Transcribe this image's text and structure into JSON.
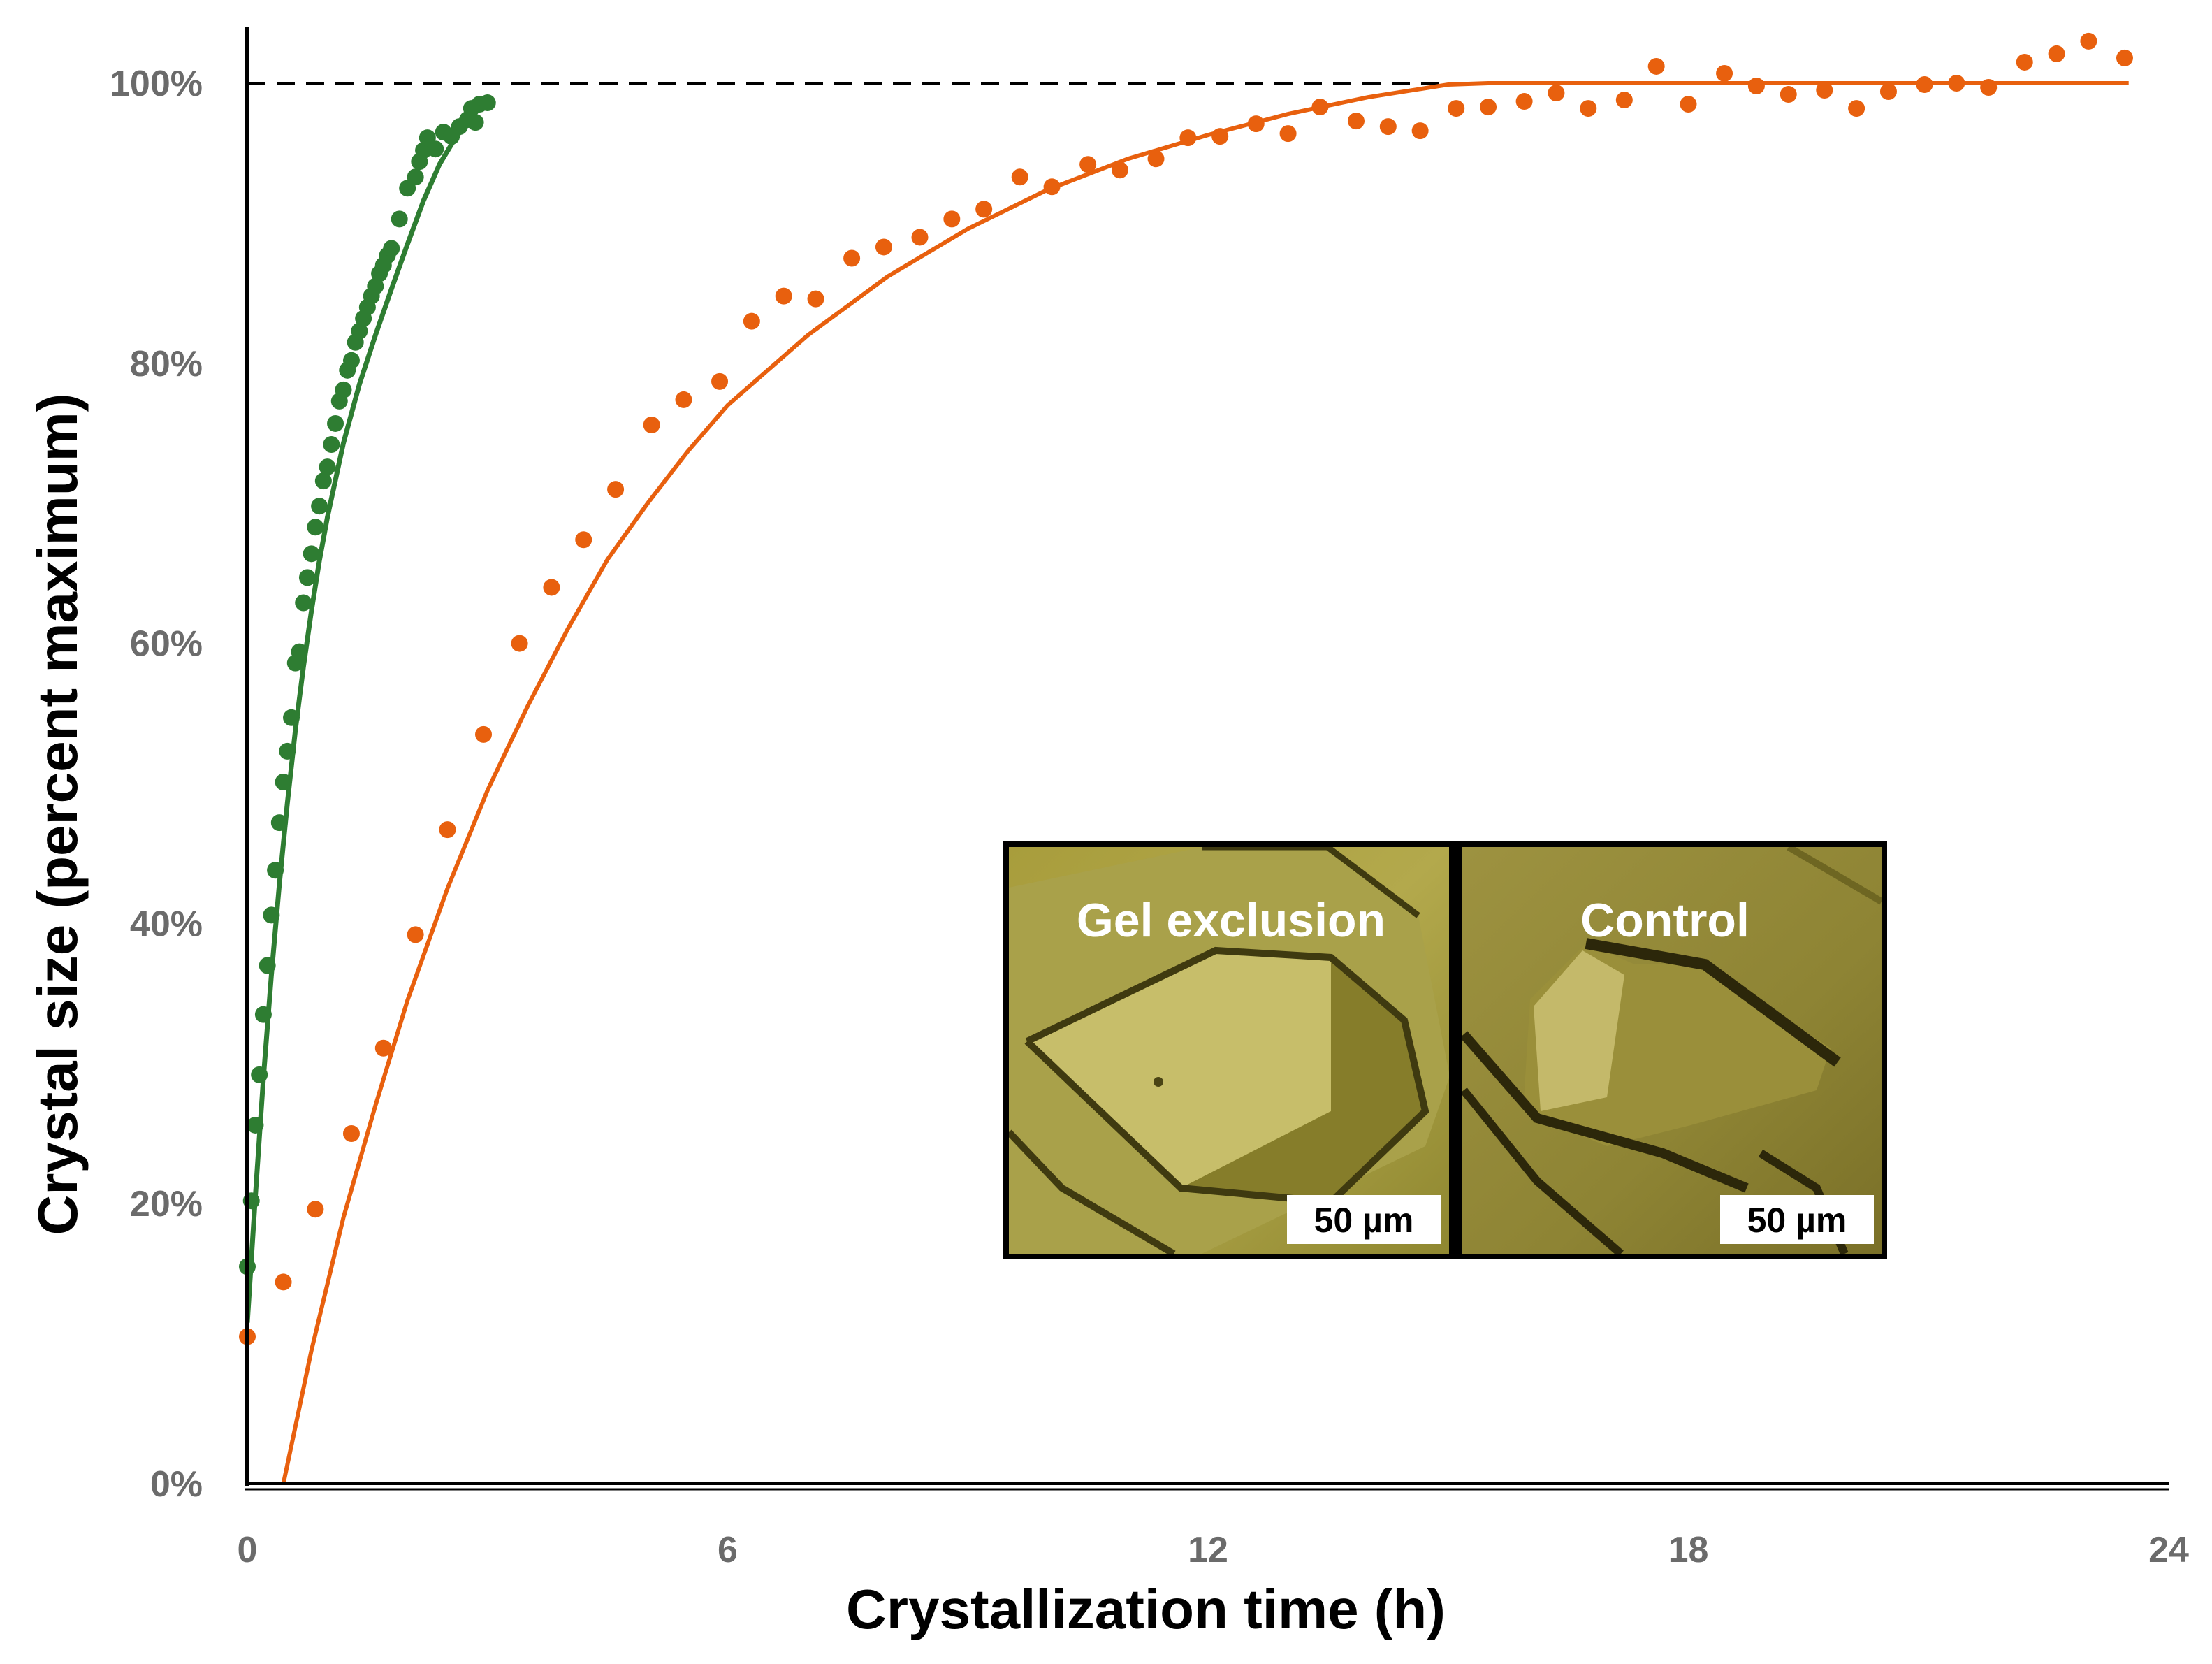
{
  "chart_data": {
    "type": "scatter",
    "title": "",
    "xlabel": "Crystallization time (h)",
    "ylabel": "Crystal size (percent maximum)",
    "xlim": [
      0,
      24
    ],
    "ylim": [
      0,
      100
    ],
    "x_ticks": [
      0,
      6,
      12,
      18,
      24
    ],
    "x_tick_labels": [
      "0",
      "6",
      "12",
      "18",
      "24"
    ],
    "y_ticks": [
      0,
      20,
      40,
      60,
      80,
      100
    ],
    "y_tick_labels": [
      "0%",
      "20%",
      "40%",
      "60%",
      "80%",
      "100%"
    ],
    "reference_line": {
      "y": 100,
      "x_end": 15.5,
      "style": "dashed"
    },
    "series": [
      {
        "name": "Gel exclusion",
        "color": "#2e7d32",
        "points": [
          [
            0.0,
            15.5
          ],
          [
            0.05,
            20.2
          ],
          [
            0.1,
            25.6
          ],
          [
            0.15,
            29.2
          ],
          [
            0.2,
            33.5
          ],
          [
            0.25,
            37.0
          ],
          [
            0.3,
            40.6
          ],
          [
            0.35,
            43.8
          ],
          [
            0.4,
            47.2
          ],
          [
            0.45,
            50.1
          ],
          [
            0.5,
            52.3
          ],
          [
            0.55,
            54.7
          ],
          [
            0.6,
            58.6
          ],
          [
            0.65,
            59.4
          ],
          [
            0.7,
            62.9
          ],
          [
            0.75,
            64.7
          ],
          [
            0.8,
            66.4
          ],
          [
            0.85,
            68.3
          ],
          [
            0.9,
            69.8
          ],
          [
            0.95,
            71.6
          ],
          [
            1.0,
            72.6
          ],
          [
            1.05,
            74.2
          ],
          [
            1.1,
            75.7
          ],
          [
            1.15,
            77.3
          ],
          [
            1.2,
            78.1
          ],
          [
            1.25,
            79.5
          ],
          [
            1.3,
            80.2
          ],
          [
            1.35,
            81.5
          ],
          [
            1.4,
            82.3
          ],
          [
            1.45,
            83.2
          ],
          [
            1.5,
            84.0
          ],
          [
            1.55,
            84.8
          ],
          [
            1.6,
            85.5
          ],
          [
            1.65,
            86.4
          ],
          [
            1.7,
            87.0
          ],
          [
            1.75,
            87.7
          ],
          [
            1.8,
            88.2
          ],
          [
            1.9,
            90.3
          ],
          [
            2.0,
            92.5
          ],
          [
            2.1,
            93.3
          ],
          [
            2.15,
            94.4
          ],
          [
            2.2,
            95.2
          ],
          [
            2.25,
            96.1
          ],
          [
            2.35,
            95.3
          ],
          [
            2.45,
            96.5
          ],
          [
            2.55,
            96.2
          ],
          [
            2.65,
            96.9
          ],
          [
            2.75,
            97.4
          ],
          [
            2.8,
            98.2
          ],
          [
            2.85,
            97.2
          ],
          [
            2.9,
            98.5
          ],
          [
            3.0,
            98.6
          ]
        ],
        "fit_curve": [
          [
            0.0,
            11.5
          ],
          [
            0.1,
            20.5
          ],
          [
            0.2,
            28.9
          ],
          [
            0.3,
            36.3
          ],
          [
            0.4,
            42.8
          ],
          [
            0.5,
            48.6
          ],
          [
            0.6,
            53.8
          ],
          [
            0.7,
            58.3
          ],
          [
            0.8,
            62.3
          ],
          [
            0.9,
            65.9
          ],
          [
            1.0,
            69.0
          ],
          [
            1.2,
            74.3
          ],
          [
            1.4,
            78.5
          ],
          [
            1.6,
            82.0
          ],
          [
            1.8,
            85.3
          ],
          [
            2.0,
            88.5
          ],
          [
            2.2,
            91.6
          ],
          [
            2.4,
            94.2
          ],
          [
            2.6,
            96.1
          ],
          [
            2.8,
            97.6
          ],
          [
            3.0,
            98.9
          ]
        ]
      },
      {
        "name": "Control",
        "color": "#e8600e",
        "points": [
          [
            0.0,
            10.5
          ],
          [
            0.45,
            14.4
          ],
          [
            0.85,
            19.6
          ],
          [
            1.3,
            25.0
          ],
          [
            1.7,
            31.1
          ],
          [
            2.1,
            39.2
          ],
          [
            2.5,
            46.7
          ],
          [
            2.95,
            53.5
          ],
          [
            3.4,
            60.0
          ],
          [
            3.8,
            64.0
          ],
          [
            4.2,
            67.4
          ],
          [
            4.6,
            71.0
          ],
          [
            5.05,
            75.6
          ],
          [
            5.45,
            77.4
          ],
          [
            5.9,
            78.7
          ],
          [
            6.3,
            83.0
          ],
          [
            6.7,
            84.8
          ],
          [
            7.1,
            84.6
          ],
          [
            7.55,
            87.5
          ],
          [
            7.95,
            88.3
          ],
          [
            8.4,
            89.0
          ],
          [
            8.8,
            90.3
          ],
          [
            9.2,
            91.0
          ],
          [
            9.65,
            93.3
          ],
          [
            10.05,
            92.6
          ],
          [
            10.5,
            94.2
          ],
          [
            10.9,
            93.8
          ],
          [
            11.35,
            94.6
          ],
          [
            11.75,
            96.1
          ],
          [
            12.15,
            96.2
          ],
          [
            12.6,
            97.1
          ],
          [
            13.0,
            96.4
          ],
          [
            13.4,
            98.3
          ],
          [
            13.85,
            97.3
          ],
          [
            14.25,
            96.9
          ],
          [
            14.65,
            96.6
          ],
          [
            15.1,
            98.2
          ],
          [
            15.5,
            98.3
          ],
          [
            15.95,
            98.7
          ],
          [
            16.35,
            99.3
          ],
          [
            16.75,
            98.2
          ],
          [
            17.2,
            98.8
          ],
          [
            17.6,
            101.2
          ],
          [
            18.0,
            98.5
          ],
          [
            18.45,
            100.7
          ],
          [
            18.85,
            99.8
          ],
          [
            19.25,
            99.2
          ],
          [
            19.7,
            99.5
          ],
          [
            20.1,
            98.2
          ],
          [
            20.5,
            99.4
          ],
          [
            20.95,
            99.9
          ],
          [
            21.35,
            100.0
          ],
          [
            21.75,
            99.7
          ],
          [
            22.2,
            101.5
          ],
          [
            22.6,
            102.1
          ],
          [
            23.0,
            103.0
          ],
          [
            23.45,
            101.8
          ]
        ],
        "fit_curve": [
          [
            0.45,
            0
          ],
          [
            0.8,
            9.5
          ],
          [
            1.2,
            19.0
          ],
          [
            1.6,
            27.0
          ],
          [
            2.0,
            34.5
          ],
          [
            2.5,
            42.5
          ],
          [
            3.0,
            49.5
          ],
          [
            3.5,
            55.5
          ],
          [
            4.0,
            61.0
          ],
          [
            4.5,
            66.0
          ],
          [
            5.0,
            70.0
          ],
          [
            5.5,
            73.7
          ],
          [
            6.0,
            77.0
          ],
          [
            7.0,
            82.0
          ],
          [
            8.0,
            86.2
          ],
          [
            9.0,
            89.6
          ],
          [
            10.0,
            92.4
          ],
          [
            11.0,
            94.6
          ],
          [
            12.0,
            96.3
          ],
          [
            13.0,
            97.8
          ],
          [
            14.0,
            99.0
          ],
          [
            15.0,
            99.9
          ],
          [
            15.5,
            100.0
          ],
          [
            23.5,
            100.0
          ]
        ]
      }
    ],
    "inset": {
      "panels": [
        {
          "title": "Gel exclusion",
          "scale_bar": "50 µm"
        },
        {
          "title": "Control",
          "scale_bar": "50 µm"
        }
      ]
    }
  }
}
